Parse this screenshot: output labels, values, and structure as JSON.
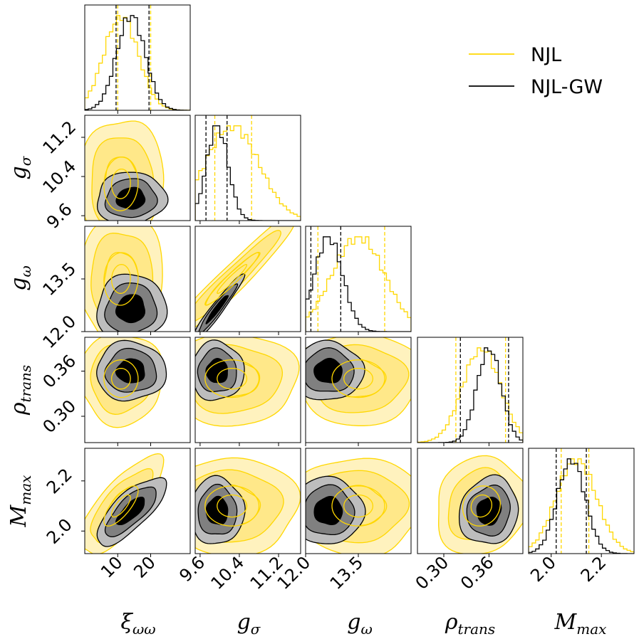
{
  "chart_data": {
    "type": "corner",
    "parameters": [
      {
        "symbol": "ξ",
        "subscript": "ωω",
        "range": [
          0,
          32
        ],
        "ticks": [
          10,
          20
        ],
        "tick_labels": [
          "10",
          "20"
        ]
      },
      {
        "symbol": "g",
        "subscript": "σ",
        "range": [
          9.5,
          11.65
        ],
        "ticks": [
          9.6,
          10.4,
          11.2
        ],
        "tick_labels": [
          "9.6",
          "10.4",
          "11.2"
        ]
      },
      {
        "symbol": "g",
        "subscript": "ω",
        "range": [
          12.0,
          15.0
        ],
        "ticks": [
          12.0,
          13.5
        ],
        "tick_labels": [
          "12.0",
          "13.5"
        ]
      },
      {
        "symbol": "ρ",
        "subscript": "trans",
        "range": [
          0.265,
          0.405
        ],
        "ticks": [
          0.3,
          0.36
        ],
        "tick_labels": [
          "0.30",
          "0.36"
        ]
      },
      {
        "symbol": "M",
        "subscript": "max",
        "range": [
          1.91,
          2.33
        ],
        "ticks": [
          2.0,
          2.2
        ],
        "tick_labels": [
          "2.0",
          "2.2"
        ]
      }
    ],
    "series": [
      {
        "name": "NJL",
        "color": "#FFD700",
        "means": [
          11,
          10.25,
          13.5,
          0.35,
          2.1
        ],
        "stds": [
          5.2,
          0.55,
          0.75,
          0.025,
          0.08
        ],
        "quantiles": [
          [
            10,
            20
          ],
          [
            9.9,
            10.65
          ],
          [
            12.35,
            14.25
          ],
          [
            0.316,
            0.382
          ],
          [
            2.04,
            2.15
          ]
        ]
      },
      {
        "name": "NJL-GW",
        "color": "#000000",
        "means": [
          14,
          9.95,
          12.65,
          0.36,
          2.08
        ],
        "stds": [
          4.3,
          0.22,
          0.4,
          0.016,
          0.055
        ],
        "quantiles": [
          [
            9.5,
            19.5
          ],
          [
            9.72,
            10.15
          ],
          [
            12.15,
            13.0
          ],
          [
            0.322,
            0.386
          ],
          [
            2.02,
            2.14
          ]
        ]
      }
    ],
    "correlations": [
      [
        0,
        1,
        0.05
      ],
      [
        0,
        2,
        0.05
      ],
      [
        0,
        3,
        0.0
      ],
      [
        0,
        4,
        0.75
      ],
      [
        1,
        2,
        0.96
      ],
      [
        1,
        3,
        0.0
      ],
      [
        1,
        4,
        0.0
      ],
      [
        2,
        3,
        0.0
      ],
      [
        2,
        4,
        0.0
      ],
      [
        3,
        4,
        0.1
      ]
    ],
    "legend": {
      "position": "top-right",
      "entries": [
        "NJL",
        "NJL-GW"
      ]
    }
  }
}
